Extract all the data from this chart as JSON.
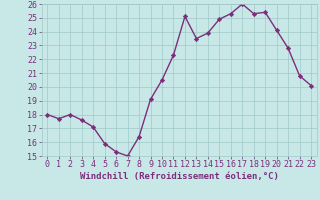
{
  "x": [
    0,
    1,
    2,
    3,
    4,
    5,
    6,
    7,
    8,
    9,
    10,
    11,
    12,
    13,
    14,
    15,
    16,
    17,
    18,
    19,
    20,
    21,
    22,
    23
  ],
  "y": [
    18.0,
    17.7,
    18.0,
    17.6,
    17.1,
    15.9,
    15.3,
    15.0,
    16.4,
    19.1,
    20.5,
    22.3,
    25.1,
    23.5,
    23.9,
    24.9,
    25.3,
    26.0,
    25.3,
    25.4,
    24.1,
    22.8,
    20.8,
    20.1
  ],
  "line_color": "#7b2f7b",
  "marker": "D",
  "marker_size": 2.2,
  "bg_color": "#c8e8e8",
  "grid_color": "#a0c8c8",
  "ylim": [
    15,
    26
  ],
  "yticks": [
    15,
    16,
    17,
    18,
    19,
    20,
    21,
    22,
    23,
    24,
    25,
    26
  ],
  "xticks": [
    0,
    1,
    2,
    3,
    4,
    5,
    6,
    7,
    8,
    9,
    10,
    11,
    12,
    13,
    14,
    15,
    16,
    17,
    18,
    19,
    20,
    21,
    22,
    23
  ],
  "xlabel": "Windchill (Refroidissement éolien,°C)",
  "xlabel_color": "#7b2f7b",
  "tick_color": "#7b2f7b",
  "line_width": 1.0,
  "tick_fontsize": 6.0,
  "xlabel_fontsize": 6.5
}
